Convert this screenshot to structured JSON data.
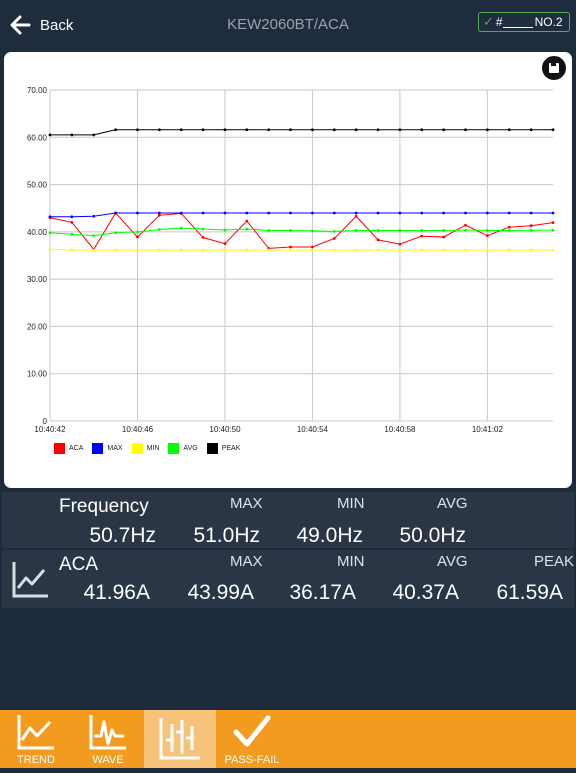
{
  "header": {
    "back_label": "Back",
    "title": "KEW2060BT/ACA",
    "badge_hash": "#",
    "badge_label": "NO.2",
    "badge_color": "#4caf50"
  },
  "chart_data": {
    "type": "line",
    "x": [
      "10:40:42",
      "10:40:43",
      "10:40:44",
      "10:40:45",
      "10:40:46",
      "10:40:47",
      "10:40:48",
      "10:40:49",
      "10:40:50",
      "10:40:51",
      "10:40:52",
      "10:40:53",
      "10:40:54",
      "10:40:55",
      "10:40:56",
      "10:40:57",
      "10:40:58",
      "10:40:59",
      "10:41:00",
      "10:41:01",
      "10:41:02",
      "10:41:03",
      "10:41:04",
      "10:41:05"
    ],
    "x_tick_labels": [
      "10:40:42",
      "10:40:46",
      "10:40:50",
      "10:40:54",
      "10:40:58",
      "10:41:02"
    ],
    "y_tick_labels": [
      "0",
      "10.00",
      "20.00",
      "30.00",
      "40.00",
      "50.00",
      "60.00",
      "70.00"
    ],
    "ylim": [
      0,
      70
    ],
    "grid": true,
    "legend_position": "bottom-left",
    "series": [
      {
        "name": "ACA",
        "color": "#ff0000",
        "values": [
          43.0,
          42.0,
          36.3,
          44.0,
          38.9,
          43.5,
          43.9,
          38.8,
          37.5,
          42.3,
          36.5,
          36.8,
          36.8,
          38.6,
          43.3,
          38.3,
          37.4,
          39.1,
          38.9,
          41.4,
          39.2,
          41.0,
          41.3,
          41.96
        ]
      },
      {
        "name": "MAX",
        "color": "#0000ff",
        "values": [
          43.2,
          43.2,
          43.3,
          43.99,
          43.99,
          43.99,
          43.99,
          43.99,
          43.99,
          43.99,
          43.99,
          43.99,
          43.99,
          43.99,
          43.99,
          43.99,
          43.99,
          43.99,
          43.99,
          43.99,
          43.99,
          43.99,
          43.99,
          43.99
        ]
      },
      {
        "name": "MIN",
        "color": "#ffff00",
        "values": [
          36.3,
          36.2,
          36.17,
          36.17,
          36.17,
          36.17,
          36.17,
          36.17,
          36.17,
          36.17,
          36.17,
          36.17,
          36.17,
          36.17,
          36.17,
          36.17,
          36.17,
          36.17,
          36.17,
          36.17,
          36.17,
          36.17,
          36.17,
          36.17
        ]
      },
      {
        "name": "AVG",
        "color": "#00ff00",
        "values": [
          39.8,
          39.5,
          39.2,
          39.8,
          40.0,
          40.5,
          40.8,
          40.6,
          40.4,
          40.6,
          40.3,
          40.3,
          40.2,
          40.1,
          40.3,
          40.3,
          40.3,
          40.3,
          40.3,
          40.4,
          40.3,
          40.3,
          40.35,
          40.37
        ]
      },
      {
        "name": "PEAK",
        "color": "#000000",
        "values": [
          60.5,
          60.5,
          60.5,
          61.59,
          61.59,
          61.59,
          61.59,
          61.59,
          61.59,
          61.59,
          61.59,
          61.59,
          61.59,
          61.59,
          61.59,
          61.59,
          61.59,
          61.59,
          61.59,
          61.59,
          61.59,
          61.59,
          61.59,
          61.59
        ]
      }
    ]
  },
  "frequency": {
    "label": "Frequency",
    "max_caption": "MAX",
    "min_caption": "MIN",
    "avg_caption": "AVG",
    "value": "50.7Hz",
    "max": "51.0Hz",
    "min": "49.0Hz",
    "avg": "50.0Hz"
  },
  "aca": {
    "label": "ACA",
    "max_caption": "MAX",
    "min_caption": "MIN",
    "avg_caption": "AVG",
    "peak_caption": "PEAK",
    "value": "41.96A",
    "max": "43.99A",
    "min": "36.17A",
    "avg": "40.37A",
    "peak": "61.59A"
  },
  "toolbar": {
    "trend_label": "TREND",
    "wave_label": "WAVE",
    "passfail_label": "PASS-FAIL",
    "accent": "#f29b1f"
  }
}
